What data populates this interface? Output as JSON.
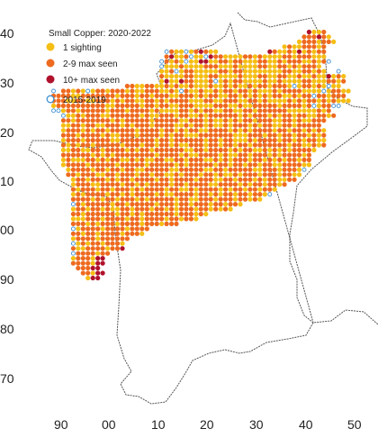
{
  "map": {
    "legend": {
      "title": "Small Copper:  2020-2022",
      "items": [
        {
          "key": "one",
          "label": "1 sighting",
          "color": "#F5BE14",
          "style": "filled"
        },
        {
          "key": "few",
          "label": "2-9 max seen",
          "color": "#EE6A1F",
          "style": "filled"
        },
        {
          "key": "many",
          "label": "10+ max seen",
          "color": "#B0122C",
          "style": "filled"
        },
        {
          "key": "old",
          "label": "2015-2019",
          "color": "#3F8FD2",
          "style": "ring"
        }
      ]
    },
    "y_ticks": [
      "40",
      "30",
      "20",
      "10",
      "00",
      "90",
      "80",
      "70"
    ],
    "x_ticks": [
      "90",
      "00",
      "10",
      "20",
      "30",
      "40",
      "50"
    ],
    "grid": "1 km squares",
    "grid_rows": [
      "........................................................................",
      "................................................................RYYO....",
      "...............................................................OOOROY...",
      "..............................................................YOOOYOOY..",
      "...........................................................YOYYOOOYO....",
      "...................................BOYYBYOROYY..........ROYYOYRYOYOO....",
      "...................................ORYYOBYYBROOYYYYOOYOYYYYOOYOOOYYY....",
      "..................................BOYOYBYYRRYYOOYOOYYYOOYYOYOOOYYOYOB...",
      "..................................BYYYOYYYYOOOYYYOYYYYOOYYOOYOYOOOY.....",
      "..................................YYOBYOOYYYYYOOYOOYYYYYYYYOOYYOOYOY..B.",
      "..................................OYYYYOOYYYOOYYYYOYYYOOYYOOYYOYYOYYRYOY",
      "..................................YRYYROOYYYOBYOYOOYYYYOYYOYYYYOOYYYOOYO",
      "...........................OOYYOOYYOYOYYOYYYOYYOYOYYOYOOYOOOYBYOOYOYBYY",
      "............B.OOYOYBYOOYOOOYOYYOOOYYOYBOYYOYYOYOOYOOYOYYYOYOOOOYYYYBYOOYY",
      "............OOOOYYOOOOOOOYOOOYOOYOOOYYOOOYOYOOYYOOYOYOYOYOOYYOYOOBOOYOOO",
      "............OOOYYOOYYOOOYOYOOYYOOYOYOOOOYYYOOYYOOOYYOOYOYYYYOYOYOOYOYOYYY",
      "............YOOOOOOOOOOYYOOOOOYOOYOOYYOOOYYYYOOOYYOYYOOOOOYOOOOYOBYOOBB.",
      "............BBYOOYOOOOOYOOOYOOOOYOYYYYOOYOYOOYYOOYYOOYOOOOOOYYYYYYOYO..",
      "..............BYYOYOOOYYOOOOOOYOYYOOOYOOYYOYOOOOOOYOYOOOYOYOOYOOYYOOYO..",
      "..............OOYOOOOOOOYOYOOOOOYOOOOOYYOOOYOYYOYOYOOYOOOYYOOYOYYOOO...",
      "..............YYOOYOOYYOOOYOYOOOYOOOOYYOYOOYOYYOYOOOYOYOOYYOOYOOOOO...",
      "..............YOOOYOYOOYOOOOOYOOOOYOOYOYOOYYOOOOYOYOYOOOOYOOYOOYOYOY...",
      "..............OOOYOOOOYOYYOOOYOOOOYOYOOYYYOOOOOOOYYYOOOYOOYOOYOOYOYO...",
      "..............YOOOYOOOOOYYOOOOOOOYOOYOOOOOOYOOYOOYYYOYOOOOYOOYOYOOYY...",
      "..............OYOYOOYOOOOOYOOOYOOYOOYOYYOOOYOOYOOYOOYOOOOOOOYOOYYOYO...",
      "..............YYOOYYOOYOOOOYOYOOYOOOOOOYYOOYOOOOYOYOOYYOYOYOYOOOOY....",
      "..............OOOOOOYOYOYOOOOOOOOYOOOOYOYYOOOOYOYYOOYOOOYOYOOOOYO.....",
      "..............YOYYYOOYOYOOYYOYOYYOOYYOOYOOOYYOYOYOOOYOOYOYOYOOYOO.....",
      "..............YOOOOYOOOOOYOOOOOYOOOOOYOYOOOOOYOOYOOYOOYOOYYOOOOYY.....",
      "...............YOOOOYOOYOOYOOYYOOOOOYYOOOOOYYOOYOOOOOYYOOOYOOOYB......",
      "...............OOYOOOYYOOYOOOYOOYOOYYOYOOOYOOYOYYOYOOOYOOOYOOYY.......",
      "................YOOYOOOYOYOOYOOOOYOOYOOOOYOOOYYOOYOOOYOYOOYYOO........",
      "................YOOOYYOOOOYOOYOYOOOOYOOYOOOOYYOOOOYOYOOYOOYO..........",
      "................OYOOOYOOYOOOYOYOOOOYOOYYOYOOOOYOYOOYOOYOOY............",
      "................YOYOOOOYOOYOYOOOOYOYYOOOOYOOYOYOOYOOYOOYB..............",
      "................OOOOYOYOOYOOOYOYOOOOOYOOYYOOOYOOOYOOYOY...............",
      "................BOYOOOOOYOOYOOOOOYOOOYOOYOOOYOOYOOY....................",
      "................YOOYOOYOYYOOYOOOYOOYOYOOOYOOYOYOY......................",
      "................OOYOOOOOOYOOYOYOOOOOOYOOOYOY...........................",
      "................YYYOOOYOOOOYOOYOOOOYOOYOOY.............................",
      "................OOOYOYOOOYOOOOYOOOYOOO.................................",
      "................BYOOOOYOOOOYOOOO.......................................",
      "................OOYOOYOOOOYOOOY........................................",
      "................YOOOOYOOOOOO...........................................",
      "................BYOYOOYOOOY............................................",
      "................OYYOOOOYOOR............................................",
      "................BOOOOYOO...............................................",
      "................YOOOYRR................................................",
      "................OOOOYRR................................................",
      ".................OOORR.................................................",
      "..................OOYRR................................................",
      "...................YRR................................................."
    ]
  }
}
